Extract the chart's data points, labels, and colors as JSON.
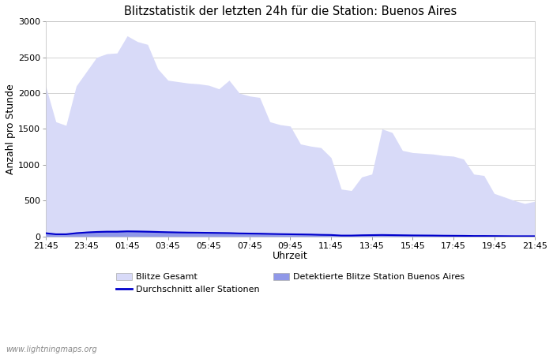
{
  "title": "Blitzstatistik der letzten 24h für die Station: Buenos Aires",
  "xlabel": "Uhrzeit",
  "ylabel": "Anzahl pro Stunde",
  "x_labels": [
    "21:45",
    "23:45",
    "01:45",
    "03:45",
    "05:45",
    "07:45",
    "09:45",
    "11:45",
    "13:45",
    "15:45",
    "17:45",
    "19:45",
    "21:45"
  ],
  "x_positions": [
    0,
    2,
    4,
    6,
    8,
    10,
    12,
    14,
    16,
    18,
    20,
    22,
    24
  ],
  "ylim": [
    0,
    3000
  ],
  "yticks": [
    0,
    500,
    1000,
    1500,
    2000,
    2500,
    3000
  ],
  "bg_color": "#ffffff",
  "plot_bg_color": "#ffffff",
  "grid_color": "#cccccc",
  "fill_gesamt_color": "#d8daf8",
  "fill_detected_color": "#9098e8",
  "line_avg_color": "#0000cc",
  "watermark": "www.lightningmaps.org",
  "legend_gesamt": "Blitze Gesamt",
  "legend_detected": "Detektierte Blitze Station Buenos Aires",
  "legend_avg": "Durchschnitt aller Stationen",
  "gesamt_values": [
    2100,
    1600,
    1550,
    2100,
    2300,
    2500,
    2550,
    2560,
    2800,
    2720,
    2680,
    2340,
    2180,
    2160,
    2140,
    2130,
    2110,
    2060,
    2180,
    2000,
    1960,
    1940,
    1600,
    1560,
    1540,
    1290,
    1260,
    1240,
    1100,
    660,
    640,
    830,
    870,
    1500,
    1450,
    1200,
    1170,
    1160,
    1150,
    1130,
    1120,
    1080,
    870,
    850,
    600,
    550,
    500,
    460,
    490
  ],
  "detected_values": [
    60,
    40,
    40,
    60,
    70,
    80,
    85,
    85,
    90,
    88,
    85,
    80,
    75,
    72,
    70,
    68,
    65,
    62,
    60,
    55,
    52,
    50,
    45,
    42,
    40,
    38,
    35,
    30,
    28,
    18,
    16,
    22,
    24,
    28,
    26,
    22,
    20,
    18,
    16,
    14,
    12,
    10,
    8,
    8,
    6,
    5,
    4,
    4,
    4
  ],
  "avg_values": [
    45,
    30,
    30,
    45,
    55,
    62,
    65,
    65,
    70,
    68,
    65,
    62,
    58,
    55,
    53,
    52,
    50,
    48,
    46,
    42,
    40,
    38,
    35,
    32,
    30,
    28,
    26,
    22,
    20,
    12,
    12,
    16,
    18,
    20,
    18,
    16,
    14,
    13,
    12,
    10,
    9,
    8,
    6,
    6,
    5,
    4,
    3,
    3,
    3
  ]
}
